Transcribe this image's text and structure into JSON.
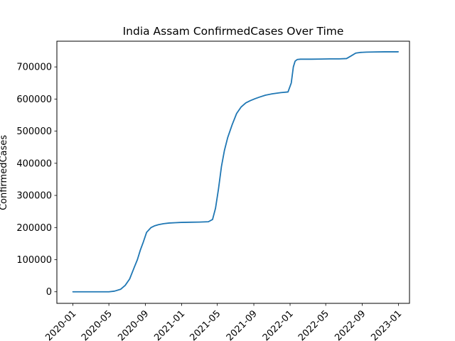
{
  "chart_data": {
    "type": "line",
    "title": "India Assam ConfirmedCases Over Time",
    "xlabel": "",
    "ylabel": "ConfirmedCases",
    "xlim": [
      "2019-11-08",
      "2023-02-07"
    ],
    "ylim": [
      -36000,
      780000
    ],
    "grid": false,
    "x_ticks": [
      "2020-01",
      "2020-05",
      "2020-09",
      "2021-01",
      "2021-05",
      "2021-09",
      "2022-01",
      "2022-05",
      "2022-09",
      "2023-01"
    ],
    "y_ticks": [
      0,
      100000,
      200000,
      300000,
      400000,
      500000,
      600000,
      700000
    ],
    "y_tick_labels": [
      "0",
      "100000",
      "200000",
      "300000",
      "400000",
      "500000",
      "600000",
      "700000"
    ],
    "series": [
      {
        "name": "",
        "color": "#1f77b4",
        "x": [
          "2020-01-01",
          "2020-03-01",
          "2020-05-01",
          "2020-05-20",
          "2020-06-10",
          "2020-06-25",
          "2020-07-10",
          "2020-07-25",
          "2020-08-05",
          "2020-08-15",
          "2020-08-25",
          "2020-09-05",
          "2020-09-20",
          "2020-10-01",
          "2020-10-15",
          "2020-11-01",
          "2020-11-20",
          "2020-12-10",
          "2021-01-01",
          "2021-02-01",
          "2021-03-01",
          "2021-04-01",
          "2021-04-15",
          "2021-04-25",
          "2021-05-05",
          "2021-05-15",
          "2021-05-25",
          "2021-06-05",
          "2021-06-20",
          "2021-07-05",
          "2021-07-20",
          "2021-08-05",
          "2021-08-20",
          "2021-09-05",
          "2021-09-20",
          "2021-10-10",
          "2021-11-01",
          "2021-12-01",
          "2021-12-25",
          "2022-01-05",
          "2022-01-12",
          "2022-01-18",
          "2022-01-25",
          "2022-02-05",
          "2022-02-20",
          "2022-03-15",
          "2022-04-15",
          "2022-05-15",
          "2022-06-15",
          "2022-07-10",
          "2022-07-25",
          "2022-08-10",
          "2022-08-25",
          "2022-09-15",
          "2022-10-15",
          "2022-11-15",
          "2022-12-31"
        ],
        "y": [
          0,
          0,
          0,
          2000,
          8000,
          20000,
          40000,
          75000,
          100000,
          130000,
          155000,
          185000,
          200000,
          205000,
          209000,
          212000,
          214000,
          215000,
          216000,
          216500,
          217000,
          218000,
          225000,
          260000,
          320000,
          390000,
          440000,
          480000,
          520000,
          555000,
          575000,
          588000,
          595000,
          601000,
          606000,
          612000,
          616000,
          620000,
          622000,
          650000,
          700000,
          718000,
          723000,
          724000,
          724000,
          724000,
          724500,
          725000,
          725000,
          726000,
          734000,
          743000,
          745000,
          746000,
          746500,
          747000,
          747000
        ]
      }
    ]
  }
}
